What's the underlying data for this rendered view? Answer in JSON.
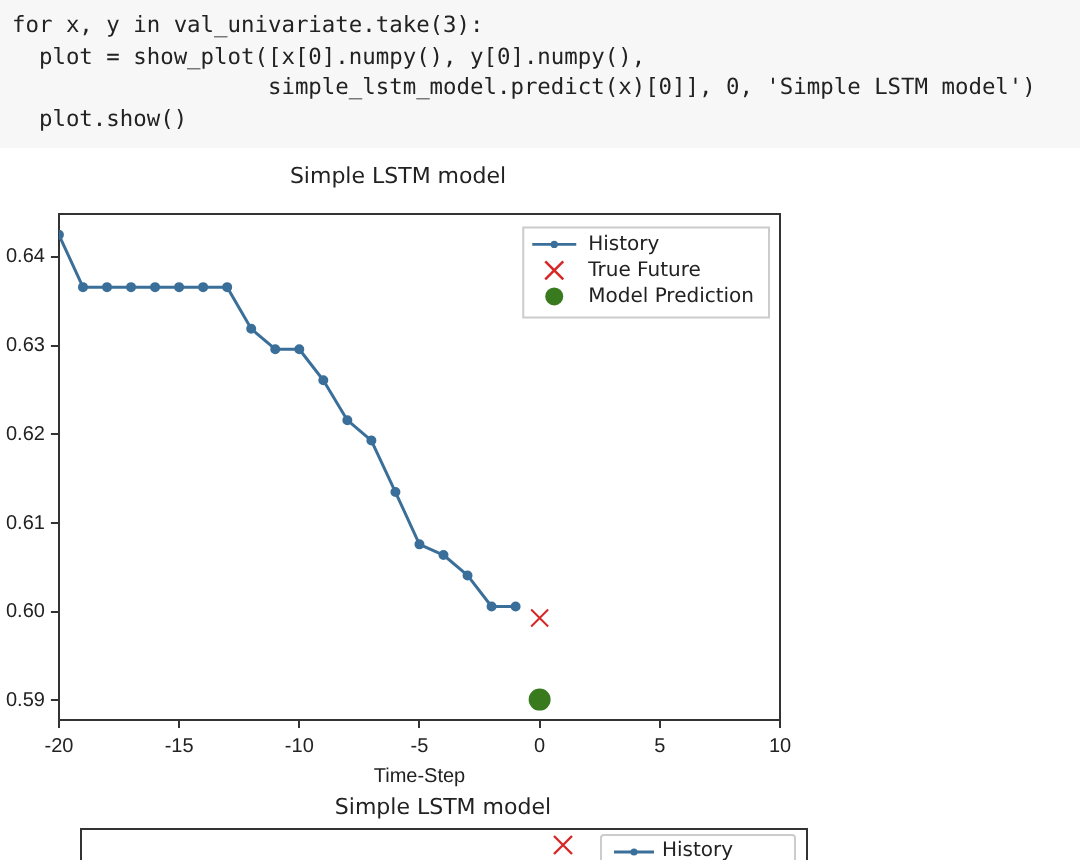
{
  "chart_data": [
    {
      "type": "line",
      "title": "Simple LSTM model",
      "xlabel": "Time-Step",
      "annotations": [
        "for x, y in val_univariate.take(3):",
        "  plot = show_plot([x[0].numpy(), y[0].numpy(),",
        "                   simple_lstm_model.predict(x)[0]], 0, 'Simple LSTM model')",
        "  plot.show()"
      ],
      "series": [
        {
          "name": "History",
          "type": "line",
          "marker": "circle",
          "color": "#3a6f9a",
          "x": [
            -20,
            -19,
            -18,
            -17,
            -16,
            -15,
            -14,
            -13,
            -12,
            -11,
            -10,
            -9,
            -8,
            -7,
            -6,
            -5,
            -4,
            -3,
            -2,
            -1
          ],
          "values": [
            0.6425,
            0.6366,
            0.6366,
            0.6366,
            0.6366,
            0.6366,
            0.6366,
            0.6366,
            0.6319,
            0.6296,
            0.6296,
            0.6261,
            0.6216,
            0.6193,
            0.6135,
            0.6076,
            0.6064,
            0.6041,
            0.6006,
            0.6006
          ]
        },
        {
          "name": "True Future",
          "type": "scatter",
          "marker": "cross",
          "color": "#d62728",
          "x": [
            0
          ],
          "values": [
            0.5993
          ]
        },
        {
          "name": "Model Prediction",
          "type": "scatter",
          "marker": "circle",
          "color": "#3a7a1f",
          "x": [
            0
          ],
          "values": [
            0.5901
          ]
        }
      ],
      "xlim": [
        -20,
        10
      ],
      "xticks": [
        -20,
        -15,
        -10,
        -5,
        0,
        5,
        10
      ],
      "ylim": [
        0.5878,
        0.6448
      ],
      "yticks": [
        0.59,
        {
          "value": 0.6,
          "label": "0.60"
        },
        0.61,
        0.62,
        0.63,
        0.64
      ],
      "legend": "top right",
      "grid": false
    },
    {
      "type": "other",
      "title": "Simple LSTM model",
      "annotations": [
        "History"
      ]
    }
  ]
}
